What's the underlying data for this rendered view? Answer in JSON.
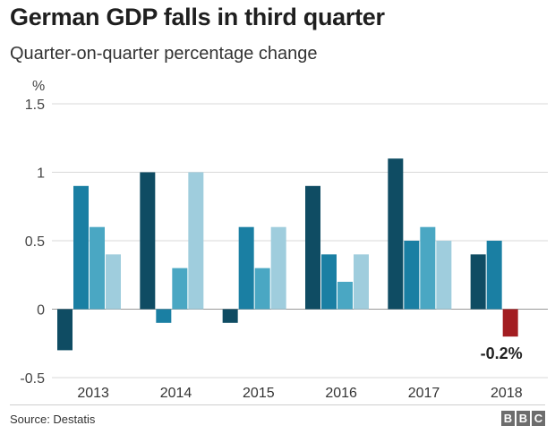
{
  "header": {
    "title": "German GDP falls in third quarter",
    "subtitle": "Quarter-on-quarter percentage change"
  },
  "footer": {
    "source": "Source: Destatis",
    "logo": [
      "B",
      "B",
      "C"
    ]
  },
  "colors": {
    "q1": "#0f4c63",
    "q2": "#1a7fa3",
    "q3": "#4aa7c3",
    "q4": "#9fcddd",
    "negative_highlight": "#a31d21",
    "grid": "#d9d9d9",
    "zero_line": "#999999"
  },
  "chart_data": {
    "type": "bar",
    "title": "German GDP falls in third quarter",
    "subtitle": "Quarter-on-quarter percentage change",
    "ylabel": "%",
    "ylim": [
      -0.5,
      1.5
    ],
    "yticks": [
      1.5,
      1,
      0.5,
      0,
      -0.5
    ],
    "ytick_labels": [
      "1.5",
      "1",
      "0.5",
      "0",
      "-0.5"
    ],
    "grid": true,
    "categories": [
      "2013",
      "2014",
      "2015",
      "2016",
      "2017",
      "2018"
    ],
    "series": [
      {
        "values": [
          -0.3,
          1.0,
          -0.1,
          0.9,
          1.1,
          0.4
        ]
      },
      {
        "values": [
          0.9,
          -0.1,
          0.6,
          0.4,
          0.5,
          0.5
        ]
      },
      {
        "values": [
          0.6,
          0.3,
          0.3,
          0.2,
          0.6,
          -0.2
        ]
      },
      {
        "values": [
          0.4,
          1.0,
          0.6,
          0.4,
          0.5,
          null
        ]
      }
    ],
    "highlight": {
      "category": "2018",
      "series_index": 2,
      "label": "-0.2%"
    }
  }
}
